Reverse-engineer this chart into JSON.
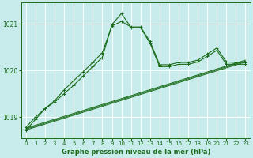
{
  "title": "Graphe pression niveau de la mer (hPa)",
  "background_color": "#c8ecec",
  "grid_color": "#ffffff",
  "line_color": "#1a6b1a",
  "ylim": [
    1018.55,
    1021.45
  ],
  "xlim": [
    -0.5,
    23.5
  ],
  "yticks": [
    1019,
    1020,
    1021
  ],
  "xticks": [
    0,
    1,
    2,
    3,
    4,
    5,
    6,
    7,
    8,
    9,
    10,
    11,
    12,
    13,
    14,
    15,
    16,
    17,
    18,
    19,
    20,
    21,
    22,
    23
  ],
  "diag1": {
    "x": [
      0,
      23
    ],
    "y": [
      1018.72,
      1020.18
    ]
  },
  "diag2": {
    "x": [
      0,
      23
    ],
    "y": [
      1018.74,
      1020.2
    ]
  },
  "diag3": {
    "x": [
      0,
      23
    ],
    "y": [
      1018.76,
      1020.22
    ]
  },
  "jagged1_x": [
    0,
    1,
    2,
    3,
    4,
    5,
    6,
    7,
    8,
    9,
    10,
    11,
    12,
    13,
    14,
    15,
    16,
    17,
    18,
    19,
    20,
    21,
    22,
    23
  ],
  "jagged1_y": [
    1018.78,
    1019.0,
    1019.18,
    1019.35,
    1019.58,
    1019.78,
    1019.97,
    1020.17,
    1020.38,
    1020.95,
    1021.05,
    1020.93,
    1020.93,
    1020.62,
    1020.12,
    1020.12,
    1020.17,
    1020.17,
    1020.22,
    1020.35,
    1020.48,
    1020.18,
    1020.17,
    1020.17
  ],
  "jagged2_x": [
    0,
    1,
    2,
    3,
    4,
    5,
    6,
    7,
    8,
    9,
    10,
    11,
    12,
    13,
    14,
    15,
    16,
    17,
    18,
    19,
    20,
    21,
    22,
    23
  ],
  "jagged2_y": [
    1018.72,
    1018.95,
    1019.18,
    1019.32,
    1019.5,
    1019.68,
    1019.88,
    1020.08,
    1020.28,
    1020.98,
    1021.22,
    1020.92,
    1020.92,
    1020.58,
    1020.08,
    1020.08,
    1020.13,
    1020.13,
    1020.18,
    1020.3,
    1020.43,
    1020.13,
    1020.13,
    1020.13
  ]
}
